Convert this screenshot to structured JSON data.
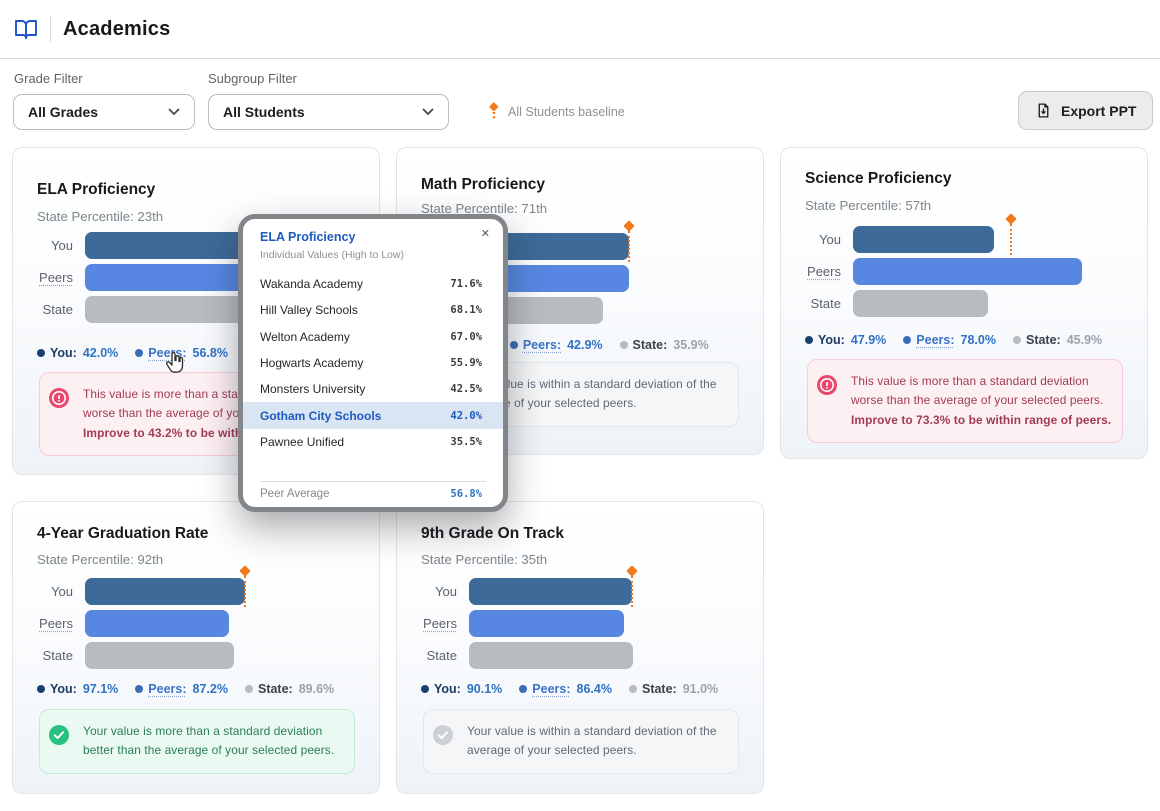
{
  "header": {
    "title": "Academics"
  },
  "filters": {
    "grade": {
      "label": "Grade Filter",
      "value": "All Grades"
    },
    "subgroup": {
      "label": "Subgroup Filter",
      "value": "All Students"
    },
    "baseline_note": "All Students baseline"
  },
  "export_button": {
    "label": "Export PPT"
  },
  "bar_labels": {
    "you": "You",
    "peers": "Peers",
    "state": "State"
  },
  "legend_labels": {
    "you": "You:",
    "peers": "Peers:",
    "state": "State:"
  },
  "colors": {
    "you_bar": "#3d6a98",
    "peers_bar": "#5787e2",
    "state_bar": "#b9bcbf",
    "baseline_marker": "#f0791d",
    "accent_blue": "#1d5bbf",
    "danger_text": "#a13b52",
    "success_text": "#2a7d52",
    "neutral_text": "#5d6a75"
  },
  "cards": [
    {
      "title": "ELA Proficiency",
      "percentile": "State Percentile: 23th",
      "you": "42.0%",
      "peers": "56.8%",
      "state": "",
      "status": {
        "type": "danger",
        "text": "This value is more than a standard deviation worse than the average of your selected peers.",
        "bold": "Improve to 43.2% to be within range of peers."
      }
    },
    {
      "title": "Math Proficiency",
      "percentile": "State Percentile: 71th",
      "you": "",
      "peers": "42.9%",
      "state": "35.9%",
      "status": {
        "type": "neutral",
        "text": "Your value is within a standard deviation of the average of your selected peers.",
        "bold": ""
      }
    },
    {
      "title": "Science Proficiency",
      "percentile": "State Percentile: 57th",
      "you": "47.9%",
      "peers": "78.0%",
      "state": "45.9%",
      "status": {
        "type": "danger",
        "text": "This value is more than a standard deviation worse than the average of your selected peers.",
        "bold": "Improve to 73.3% to be within range of peers."
      }
    },
    {
      "title": "4-Year Graduation Rate",
      "percentile": "State Percentile: 92th",
      "you": "97.1%",
      "peers": "87.2%",
      "state": "89.6%",
      "status": {
        "type": "success",
        "text": "Your value is more than a standard deviation better than the average of your selected peers.",
        "bold": ""
      }
    },
    {
      "title": "9th Grade On Track",
      "percentile": "State Percentile: 35th",
      "you": "90.1%",
      "peers": "86.4%",
      "state": "91.0%",
      "status": {
        "type": "neutral",
        "text": "Your value is within a standard deviation of the average of your selected peers.",
        "bold": ""
      }
    }
  ],
  "popup": {
    "title": "ELA Proficiency",
    "subtitle": "Individual Values (High to Low)",
    "close": "✕",
    "rows": [
      {
        "name": "Wakanda Academy",
        "value": "71.6%"
      },
      {
        "name": "Hill Valley Schools",
        "value": "68.1%"
      },
      {
        "name": "Welton Academy",
        "value": "67.0%"
      },
      {
        "name": "Hogwarts Academy",
        "value": "55.9%"
      },
      {
        "name": "Monsters University",
        "value": "42.5%"
      },
      {
        "name": "Gotham City Schools",
        "value": "42.0%",
        "highlight": true
      },
      {
        "name": "Pawnee Unified",
        "value": "35.5%"
      }
    ],
    "footer": {
      "label": "Peer Average",
      "value": "56.8%"
    }
  }
}
